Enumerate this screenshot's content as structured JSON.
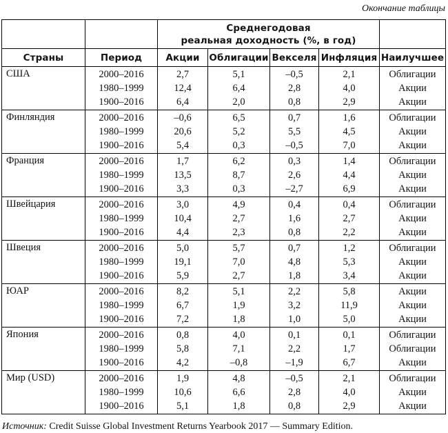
{
  "page": {
    "continuation_note": "Окончание таблицы",
    "source_prefix": "Источник:",
    "source_text": "Credit Suisse Global Investment Returns Yearbook 2017 — Summary Edition."
  },
  "colors": {
    "background": "#ffffff",
    "text": "#111111",
    "border": "#000000"
  },
  "table": {
    "merged_header_lines": [
      "Среднегодовая",
      "реальная доходность (%, в год)"
    ],
    "columns": [
      "Страны",
      "Период",
      "Акции",
      "Облигации",
      "Векселя",
      "Инфляция",
      "Наилучшее"
    ],
    "groups": [
      {
        "country": "США",
        "rows": [
          {
            "period": "2000–2016",
            "stocks": "2,7",
            "bonds": "5,1",
            "bills": "–0,5",
            "inflation": "2,1",
            "best": "Облигации"
          },
          {
            "period": "1980–1999",
            "stocks": "12,4",
            "bonds": "6,4",
            "bills": "2,8",
            "inflation": "4,0",
            "best": "Акции"
          },
          {
            "period": "1900–2016",
            "stocks": "6,4",
            "bonds": "2,0",
            "bills": "0,8",
            "inflation": "2,9",
            "best": "Акции"
          }
        ]
      },
      {
        "country": "Финляндия",
        "rows": [
          {
            "period": "2000–2016",
            "stocks": "–0,6",
            "bonds": "6,5",
            "bills": "0,7",
            "inflation": "1,6",
            "best": "Облигации"
          },
          {
            "period": "1980–1999",
            "stocks": "20,6",
            "bonds": "5,2",
            "bills": "5,5",
            "inflation": "4,5",
            "best": "Акции"
          },
          {
            "period": "1900–2016",
            "stocks": "5,4",
            "bonds": "0,3",
            "bills": "–0,5",
            "inflation": "7,0",
            "best": "Акции"
          }
        ]
      },
      {
        "country": "Франция",
        "rows": [
          {
            "period": "2000–2016",
            "stocks": "1,7",
            "bonds": "6,2",
            "bills": "0,3",
            "inflation": "1,4",
            "best": "Облигации"
          },
          {
            "period": "1980–1999",
            "stocks": "13,5",
            "bonds": "8,7",
            "bills": "2,6",
            "inflation": "4,4",
            "best": "Акции"
          },
          {
            "period": "1900–2016",
            "stocks": "3,3",
            "bonds": "0,3",
            "bills": "–2,7",
            "inflation": "6,9",
            "best": "Акции"
          }
        ]
      },
      {
        "country": "Швейцария",
        "rows": [
          {
            "period": "2000–2016",
            "stocks": "3,0",
            "bonds": "4,9",
            "bills": "0,4",
            "inflation": "0,4",
            "best": "Облигации"
          },
          {
            "period": "1980–1999",
            "stocks": "10,4",
            "bonds": "2,7",
            "bills": "1,6",
            "inflation": "2,7",
            "best": "Акции"
          },
          {
            "period": "1900–2016",
            "stocks": "4,4",
            "bonds": "2,3",
            "bills": "0,8",
            "inflation": "2,2",
            "best": "Акции"
          }
        ]
      },
      {
        "country": "Швеция",
        "rows": [
          {
            "period": "2000–2016",
            "stocks": "5,0",
            "bonds": "5,7",
            "bills": "0,7",
            "inflation": "1,2",
            "best": "Облигации"
          },
          {
            "period": "1980–1999",
            "stocks": "19,1",
            "bonds": "7,0",
            "bills": "4,8",
            "inflation": "5,3",
            "best": "Акции"
          },
          {
            "period": "1900–2016",
            "stocks": "5,9",
            "bonds": "2,7",
            "bills": "1,8",
            "inflation": "3,4",
            "best": "Акции"
          }
        ]
      },
      {
        "country": "ЮАР",
        "rows": [
          {
            "period": "2000–2016",
            "stocks": "8,2",
            "bonds": "5,1",
            "bills": "2,2",
            "inflation": "5,8",
            "best": "Акции"
          },
          {
            "period": "1980–1999",
            "stocks": "6,7",
            "bonds": "1,9",
            "bills": "3,2",
            "inflation": "11,9",
            "best": "Акции"
          },
          {
            "period": "1900–2016",
            "stocks": "7,2",
            "bonds": "1,8",
            "bills": "1,0",
            "inflation": "5,0",
            "best": "Акции"
          }
        ]
      },
      {
        "country": "Япония",
        "rows": [
          {
            "period": "2000–2016",
            "stocks": "0,8",
            "bonds": "4,0",
            "bills": "0,1",
            "inflation": "0,1",
            "best": "Облигации"
          },
          {
            "period": "1980–1999",
            "stocks": "5,8",
            "bonds": "7,1",
            "bills": "2,2",
            "inflation": "1,7",
            "best": "Облигации"
          },
          {
            "period": "1900–2016",
            "stocks": "4,2",
            "bonds": "–0,8",
            "bills": "–1,9",
            "inflation": "6,7",
            "best": "Акции"
          }
        ]
      },
      {
        "country": "Мир (USD)",
        "rows": [
          {
            "period": "2000–2016",
            "stocks": "1,9",
            "bonds": "4,8",
            "bills": "–0,5",
            "inflation": "2,1",
            "best": "Облигации"
          },
          {
            "period": "1980–1999",
            "stocks": "10,6",
            "bonds": "6,6",
            "bills": "2,8",
            "inflation": "4,0",
            "best": "Акции"
          },
          {
            "period": "1900–2016",
            "stocks": "5,1",
            "bonds": "1,8",
            "bills": "0,8",
            "inflation": "2,9",
            "best": "Акции"
          }
        ]
      }
    ]
  }
}
